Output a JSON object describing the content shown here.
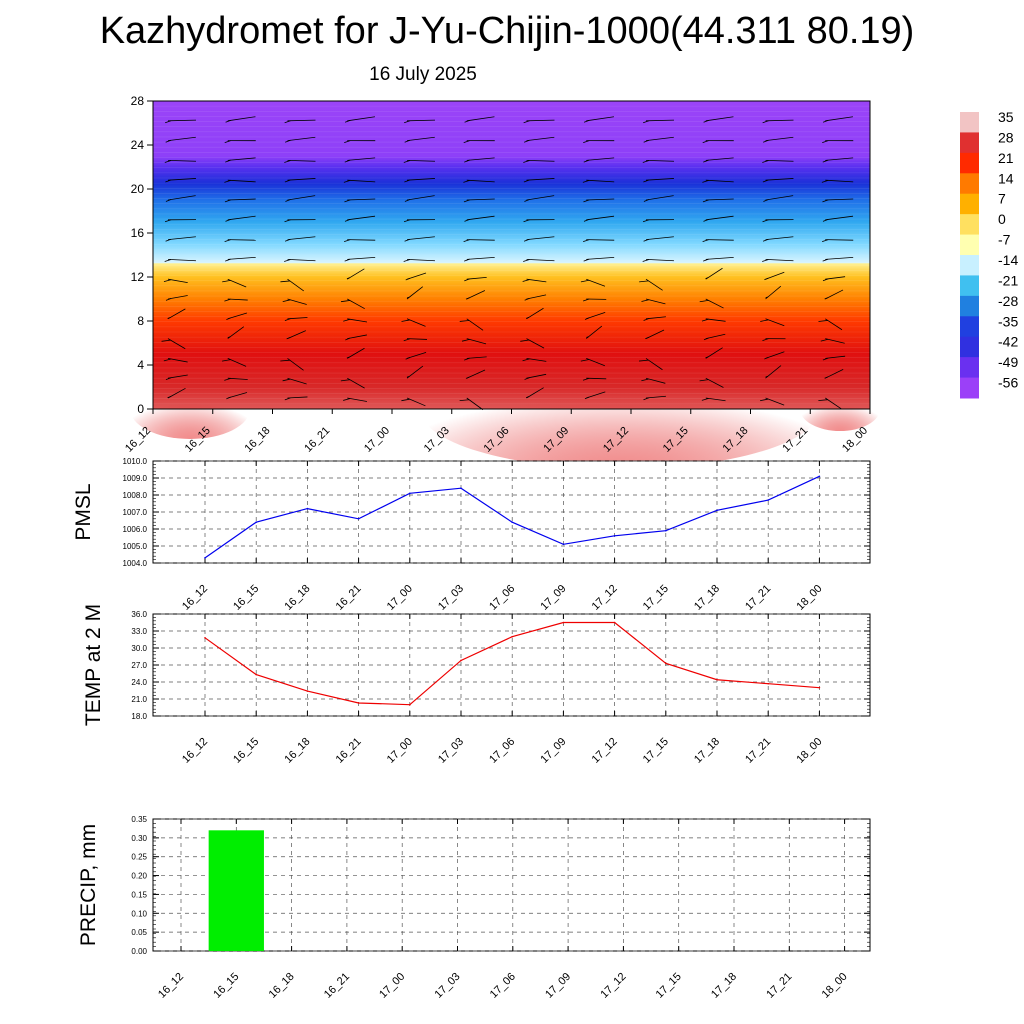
{
  "header": {
    "title": "Kazhydromet for J-Yu-Chijin-1000(44.311 80.19)",
    "subtitle": "16 July 2025"
  },
  "chart_data": [
    {
      "type": "heatmap",
      "title": "",
      "x_ticks": [
        "16_12",
        "16_15",
        "16_18",
        "16_21",
        "17_00",
        "17_03",
        "17_06",
        "17_09",
        "17_12",
        "17_15",
        "17_18",
        "17_21",
        "18_00"
      ],
      "y_ticks": [
        "0",
        "4",
        "8",
        "12",
        "16",
        "20",
        "24",
        "28"
      ],
      "ylim": [
        0,
        28
      ],
      "colorbar": {
        "labels": [
          "35",
          "28",
          "21",
          "14",
          "7",
          "0",
          "-7",
          "-14",
          "-21",
          "-28",
          "-35",
          "-42",
          "-49",
          "-56"
        ],
        "colors": [
          "#f2c4c4",
          "#e03030",
          "#ff2a00",
          "#ff7a00",
          "#ffb000",
          "#ffe060",
          "#ffffb0",
          "#c8f0ff",
          "#40c0f0",
          "#2080e0",
          "#2040e0",
          "#3030e0",
          "#6a30f0",
          "#9b40f8"
        ]
      },
      "field_stops": [
        {
          "h": 0,
          "color": "#e05858"
        },
        {
          "h": 2,
          "color": "#d82828"
        },
        {
          "h": 5,
          "color": "#e01010"
        },
        {
          "h": 8,
          "color": "#ff3a00"
        },
        {
          "h": 10,
          "color": "#ff8000"
        },
        {
          "h": 12,
          "color": "#ffc020"
        },
        {
          "h": 13.2,
          "color": "#fff090"
        },
        {
          "h": 13.3,
          "color": "#d8f4ff"
        },
        {
          "h": 15,
          "color": "#80d8ff"
        },
        {
          "h": 17,
          "color": "#30a8f0"
        },
        {
          "h": 19,
          "color": "#2070e8"
        },
        {
          "h": 20.5,
          "color": "#1a30d8"
        },
        {
          "h": 22,
          "color": "#5a30f0"
        },
        {
          "h": 23,
          "color": "#8e40f8"
        },
        {
          "h": 28,
          "color": "#9b44f8"
        }
      ],
      "wind_barbs": true
    },
    {
      "type": "line",
      "ylabel": "PMSL",
      "categories": [
        "16_12",
        "16_15",
        "16_18",
        "16_21",
        "17_00",
        "17_03",
        "17_06",
        "17_09",
        "17_12",
        "17_15",
        "17_18",
        "17_21",
        "18_00"
      ],
      "values": [
        1004.3,
        1006.4,
        1007.2,
        1006.6,
        1008.1,
        1008.4,
        1006.4,
        1005.1,
        1005.6,
        1005.9,
        1007.1,
        1007.7,
        1009.1
      ],
      "ylim": [
        1004.0,
        1010.0
      ],
      "yticks": [
        "1004.0",
        "1005.0",
        "1006.0",
        "1007.0",
        "1008.0",
        "1009.0",
        "1010.0"
      ],
      "color": "#0000ee"
    },
    {
      "type": "line",
      "ylabel": "TEMP at 2 M",
      "categories": [
        "16_12",
        "16_15",
        "16_18",
        "16_21",
        "17_00",
        "17_03",
        "17_06",
        "17_09",
        "17_12",
        "17_15",
        "17_18",
        "17_21",
        "18_00"
      ],
      "values": [
        31.8,
        25.3,
        22.4,
        20.3,
        20.0,
        27.8,
        32.0,
        34.5,
        34.5,
        27.3,
        24.4,
        23.7,
        23.0
      ],
      "ylim": [
        18.0,
        36.0
      ],
      "yticks": [
        "18.0",
        "21.0",
        "24.0",
        "27.0",
        "30.0",
        "33.0",
        "36.0"
      ],
      "color": "#ee0000"
    },
    {
      "type": "bar",
      "ylabel": "PRECIP, mm",
      "categories": [
        "16_12",
        "16_15",
        "16_18",
        "16_21",
        "17_00",
        "17_03",
        "17_06",
        "17_09",
        "17_12",
        "17_15",
        "17_18",
        "17_21",
        "18_00"
      ],
      "values": [
        0,
        0.32,
        0,
        0,
        0,
        0,
        0,
        0,
        0,
        0,
        0,
        0,
        0
      ],
      "ylim": [
        0,
        0.35
      ],
      "yticks": [
        "0.00",
        "0.05",
        "0.10",
        "0.15",
        "0.20",
        "0.25",
        "0.30",
        "0.35"
      ],
      "color": "#00ee00"
    }
  ]
}
